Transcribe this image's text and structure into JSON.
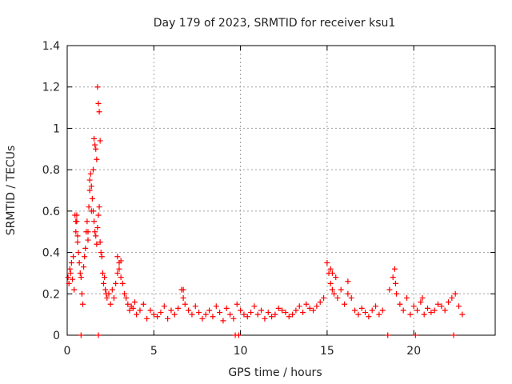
{
  "chart_data": {
    "type": "scatter",
    "title": "Day 179 of 2023, SRMTID for receiver ksu1",
    "xlabel": "GPS time / hours",
    "ylabel": "SRMTID / TECUs",
    "xlim": [
      0,
      24.7
    ],
    "ylim": [
      0,
      1.4
    ],
    "xticks": [
      0,
      5,
      10,
      15,
      20
    ],
    "xtick_labels": [
      "0",
      "5",
      "10",
      "15",
      "20"
    ],
    "yticks": [
      0,
      0.2,
      0.4,
      0.6,
      0.8,
      1.0,
      1.2,
      1.4
    ],
    "ytick_labels": [
      "0",
      "0.2",
      "0.4",
      "0.6",
      "0.8",
      "1",
      "1.2",
      "1.4"
    ],
    "grid": true,
    "series": [
      {
        "name": "SRMTID",
        "color": "#ff0000",
        "marker": "plus",
        "x": [
          0.05,
          0.1,
          0.15,
          0.2,
          0.25,
          0.3,
          0.35,
          0.4,
          0.45,
          0.5,
          0.55,
          0.6,
          0.65,
          0.7,
          0.75,
          0.8,
          0.85,
          0.9,
          0.95,
          1.0,
          1.05,
          1.1,
          1.15,
          1.2,
          1.25,
          1.3,
          1.35,
          1.4,
          1.45,
          1.5,
          1.55,
          1.6,
          1.65,
          1.7,
          1.75,
          1.8,
          1.85,
          1.9,
          1.95,
          2.0,
          2.05,
          2.1,
          2.15,
          2.2,
          2.25,
          2.3,
          2.4,
          2.5,
          2.6,
          2.7,
          2.8,
          2.9,
          3.0,
          3.1,
          3.2,
          3.3,
          3.4,
          3.5,
          3.6,
          3.7,
          3.8,
          3.9,
          4.0,
          4.2,
          4.4,
          4.6,
          4.8,
          5.0,
          5.2,
          5.4,
          5.6,
          5.8,
          6.0,
          6.2,
          6.4,
          6.6,
          6.7,
          6.8,
          7.0,
          7.2,
          7.4,
          7.6,
          7.8,
          8.0,
          8.2,
          8.4,
          8.6,
          8.8,
          9.0,
          9.2,
          9.4,
          9.6,
          9.8,
          10.0,
          10.2,
          10.4,
          10.6,
          10.8,
          11.0,
          11.2,
          11.4,
          11.6,
          11.8,
          12.0,
          12.2,
          12.4,
          12.6,
          12.8,
          13.0,
          13.2,
          13.4,
          13.6,
          13.8,
          14.0,
          14.2,
          14.4,
          14.6,
          14.8,
          15.0,
          15.1,
          15.2,
          15.3,
          15.4,
          15.5,
          15.6,
          15.8,
          16.0,
          16.2,
          16.4,
          16.6,
          16.8,
          17.0,
          17.2,
          17.4,
          17.6,
          17.8,
          18.0,
          18.2,
          18.6,
          18.8,
          18.9,
          19.0,
          19.2,
          19.4,
          19.6,
          19.8,
          20.0,
          20.2,
          20.4,
          20.6,
          20.8,
          21.0,
          21.2,
          21.4,
          21.6,
          21.8,
          22.0,
          22.2,
          22.4,
          22.6,
          22.8,
          1.55,
          1.6,
          1.65,
          1.7,
          1.75,
          1.8,
          1.85,
          1.9,
          1.2,
          1.3,
          1.4,
          1.5,
          0.5,
          0.55,
          0.6,
          2.9,
          3.0,
          3.1,
          6.7,
          15.2,
          15.3,
          16.2,
          18.95,
          20.5,
          0.8,
          1.8,
          9.7,
          9.9,
          18.5,
          20.1,
          22.3
        ],
        "y": [
          0.28,
          0.25,
          0.32,
          0.3,
          0.35,
          0.27,
          0.38,
          0.22,
          0.58,
          0.5,
          0.55,
          0.45,
          0.4,
          0.35,
          0.3,
          0.28,
          0.2,
          0.15,
          0.33,
          0.38,
          0.42,
          0.5,
          0.55,
          0.46,
          0.62,
          0.7,
          0.78,
          0.72,
          0.66,
          0.6,
          0.55,
          0.5,
          0.48,
          0.44,
          0.52,
          0.58,
          0.62,
          0.45,
          0.4,
          0.38,
          0.3,
          0.25,
          0.28,
          0.22,
          0.2,
          0.18,
          0.2,
          0.15,
          0.22,
          0.18,
          0.25,
          0.3,
          0.35,
          0.28,
          0.25,
          0.2,
          0.18,
          0.15,
          0.12,
          0.14,
          0.13,
          0.16,
          0.1,
          0.12,
          0.15,
          0.08,
          0.12,
          0.1,
          0.09,
          0.11,
          0.14,
          0.08,
          0.12,
          0.1,
          0.13,
          0.22,
          0.18,
          0.15,
          0.12,
          0.1,
          0.14,
          0.11,
          0.08,
          0.1,
          0.12,
          0.09,
          0.14,
          0.11,
          0.07,
          0.13,
          0.1,
          0.08,
          0.15,
          0.12,
          0.1,
          0.09,
          0.11,
          0.14,
          0.1,
          0.12,
          0.08,
          0.11,
          0.09,
          0.1,
          0.13,
          0.12,
          0.11,
          0.09,
          0.1,
          0.12,
          0.14,
          0.11,
          0.15,
          0.13,
          0.12,
          0.14,
          0.16,
          0.18,
          0.35,
          0.3,
          0.25,
          0.22,
          0.2,
          0.28,
          0.18,
          0.22,
          0.15,
          0.2,
          0.18,
          0.12,
          0.1,
          0.13,
          0.11,
          0.09,
          0.12,
          0.14,
          0.1,
          0.12,
          0.22,
          0.28,
          0.32,
          0.2,
          0.15,
          0.12,
          0.18,
          0.1,
          0.14,
          0.12,
          0.16,
          0.1,
          0.13,
          0.11,
          0.12,
          0.15,
          0.14,
          0.12,
          0.16,
          0.18,
          0.2,
          0.14,
          0.1,
          0.95,
          0.92,
          0.9,
          0.85,
          1.2,
          1.12,
          1.08,
          0.94,
          0.5,
          0.75,
          0.6,
          0.8,
          0.55,
          0.58,
          0.48,
          0.38,
          0.32,
          0.36,
          0.22,
          0.32,
          0.3,
          0.26,
          0.25,
          0.18,
          0.0,
          0.0,
          0.0,
          0.0,
          0.0,
          0.0,
          0.0
        ]
      }
    ]
  }
}
